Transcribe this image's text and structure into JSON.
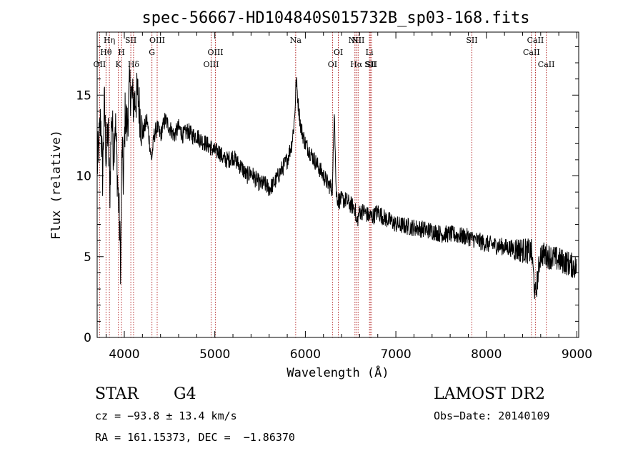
{
  "title": "spec-56667-HD104840S015732B_sp03-168.fits",
  "chart_data": {
    "type": "line",
    "xlabel": "Wavelength (Å)",
    "ylabel": "Flux (relative)",
    "xlim": [
      3700,
      9020
    ],
    "ylim": [
      0,
      18.9
    ],
    "xticks": [
      4000,
      5000,
      6000,
      7000,
      8000,
      9000
    ],
    "yticks": [
      0,
      5,
      10,
      15
    ],
    "spectrum": {
      "x": [
        3700,
        3720,
        3740,
        3760,
        3780,
        3800,
        3820,
        3840,
        3860,
        3880,
        3900,
        3920,
        3940,
        3960,
        3975,
        3990,
        4010,
        4030,
        4060,
        4100,
        4150,
        4200,
        4250,
        4300,
        4330,
        4360,
        4400,
        4450,
        4500,
        4550,
        4600,
        4650,
        4700,
        4750,
        4800,
        4850,
        4900,
        4950,
        5000,
        5050,
        5100,
        5150,
        5200,
        5250,
        5300,
        5350,
        5400,
        5450,
        5500,
        5550,
        5600,
        5650,
        5700,
        5750,
        5800,
        5850,
        5880,
        5900,
        5920,
        5950,
        6000,
        6050,
        6100,
        6150,
        6200,
        6250,
        6300,
        6320,
        6340,
        6360,
        6400,
        6450,
        6500,
        6550,
        6563,
        6600,
        6650,
        6700,
        6750,
        6800,
        6850,
        6900,
        6950,
        7000,
        7100,
        7200,
        7300,
        7400,
        7500,
        7600,
        7700,
        7800,
        7900,
        8000,
        8100,
        8200,
        8300,
        8400,
        8500,
        8540,
        8600,
        8700,
        8800,
        8900,
        9000
      ],
      "flux": [
        10.5,
        12.0,
        13.5,
        10.0,
        14.5,
        11.0,
        13.0,
        9.0,
        14.0,
        11.5,
        13.5,
        10.5,
        8.0,
        4.5,
        12.0,
        9.5,
        14.0,
        13.0,
        15.5,
        14.5,
        15.0,
        12.5,
        13.5,
        11.0,
        12.5,
        13.0,
        12.5,
        13.5,
        13.0,
        12.5,
        13.0,
        12.5,
        12.8,
        12.5,
        12.5,
        12.2,
        12.0,
        11.8,
        11.5,
        11.5,
        11.0,
        11.0,
        11.2,
        10.8,
        10.5,
        10.0,
        10.2,
        9.8,
        9.5,
        9.5,
        9.2,
        9.5,
        10.0,
        10.5,
        11.0,
        12.0,
        13.5,
        16.0,
        14.5,
        13.0,
        12.0,
        11.5,
        11.0,
        10.5,
        10.0,
        9.5,
        9.2,
        14.5,
        9.0,
        8.5,
        8.5,
        8.5,
        8.2,
        8.0,
        7.0,
        7.8,
        7.8,
        7.5,
        7.5,
        7.8,
        7.5,
        7.3,
        7.2,
        7.0,
        6.9,
        6.8,
        6.7,
        6.6,
        6.4,
        6.4,
        6.3,
        6.2,
        6.0,
        5.8,
        5.7,
        5.6,
        5.5,
        5.4,
        5.3,
        2.5,
        5.2,
        5.0,
        4.8,
        4.6,
        4.3
      ]
    },
    "lines": [
      {
        "label": "OII",
        "x": 3727,
        "row": 3
      },
      {
        "label": "Hθ",
        "x": 3798,
        "row": 2
      },
      {
        "label": "Hη",
        "x": 3835,
        "row": 1
      },
      {
        "label": "K",
        "x": 3934,
        "row": 3
      },
      {
        "label": "H",
        "x": 3969,
        "row": 2
      },
      {
        "label": "SII",
        "x": 4072,
        "row": 1
      },
      {
        "label": "Hδ",
        "x": 4102,
        "row": 3
      },
      {
        "label": "G",
        "x": 4305,
        "row": 2
      },
      {
        "label": "OIII",
        "x": 4363,
        "row": 1
      },
      {
        "label": "OIII",
        "x": 4959,
        "row": 3
      },
      {
        "label": "OIII",
        "x": 5007,
        "row": 2
      },
      {
        "label": "Na",
        "x": 5893,
        "row": 1
      },
      {
        "label": "OI",
        "x": 6300,
        "row": 3
      },
      {
        "label": "OI",
        "x": 6364,
        "row": 2
      },
      {
        "label": "NII",
        "x": 6548,
        "row": 1
      },
      {
        "label": "Hα",
        "x": 6563,
        "row": 3
      },
      {
        "label": "NII",
        "x": 6583,
        "row": 1
      },
      {
        "label": "Li",
        "x": 6708,
        "row": 2
      },
      {
        "label": "SII",
        "x": 6717,
        "row": 3
      },
      {
        "label": "SII",
        "x": 6731,
        "row": 3
      },
      {
        "label": "SII",
        "x": 7840,
        "row": 1
      },
      {
        "label": "CaII",
        "x": 8498,
        "row": 2
      },
      {
        "label": "CaII",
        "x": 8542,
        "row": 1
      },
      {
        "label": "CaII",
        "x": 8662,
        "row": 3
      }
    ],
    "grid": false,
    "legend": "none",
    "colors": {
      "spectrum": "#000000",
      "line_markers": "#b22222",
      "axes": "#000000"
    }
  },
  "info": {
    "class": "STAR",
    "subclass": "G4",
    "survey": "LAMOST DR2",
    "cz": "cz = −93.8 ± 13.4 km/s",
    "obs_date": "Obs−Date: 20140109",
    "radec": "RA = 161.15373, DEC =  −1.86370"
  }
}
